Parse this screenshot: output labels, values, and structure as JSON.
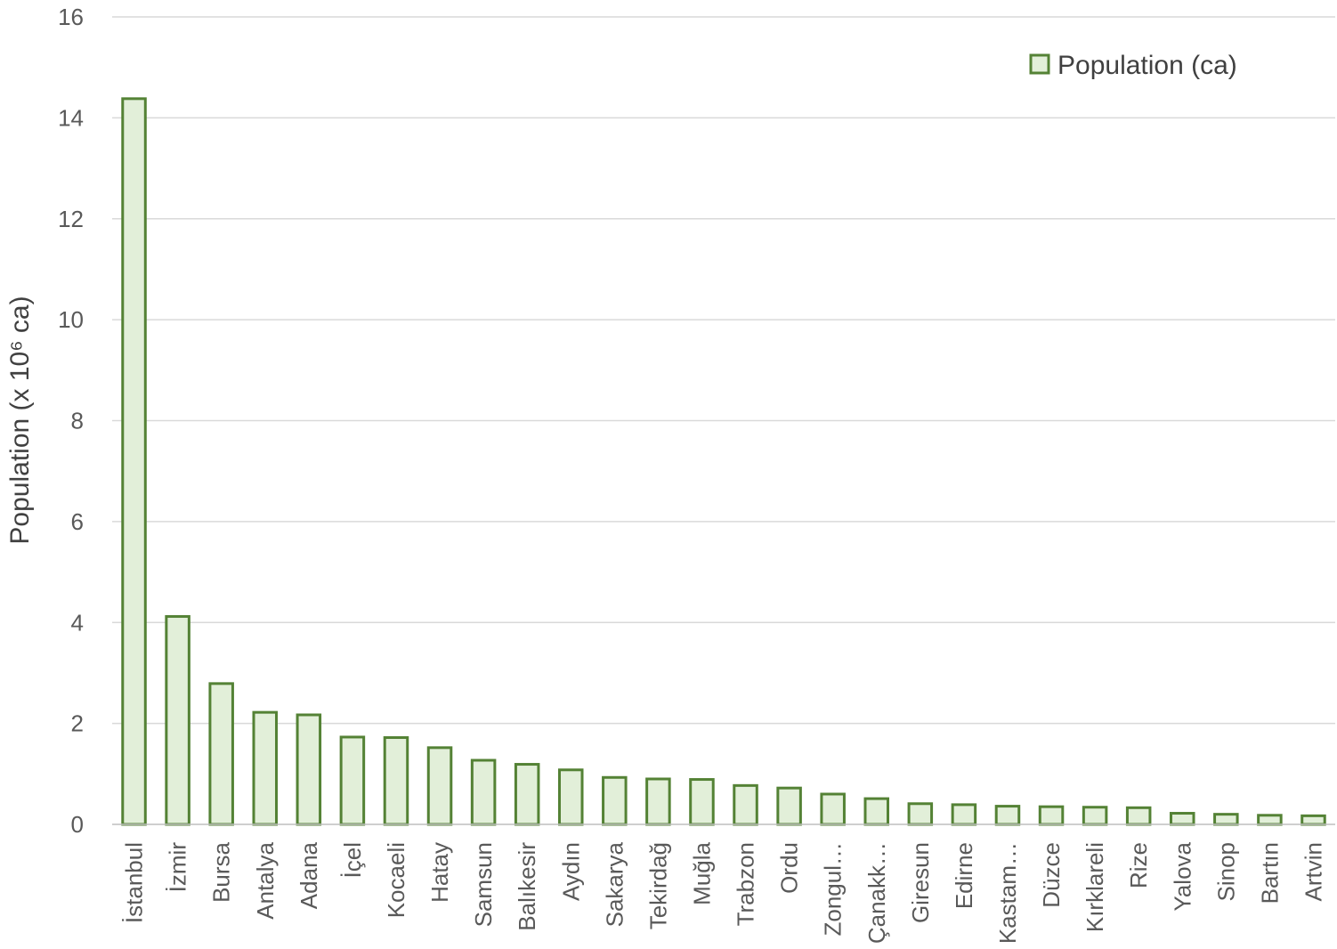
{
  "chart_data": {
    "type": "bar",
    "title": "",
    "xlabel": "",
    "ylabel": "Population (x 10⁶ ca)",
    "ylim": [
      0,
      16
    ],
    "yticks": [
      0,
      2,
      4,
      6,
      8,
      10,
      12,
      14,
      16
    ],
    "grid": true,
    "legend_position": "top-right",
    "colors": {
      "bar_fill": "#e2efd9",
      "bar_stroke": "#548235",
      "grid": "#d9d9d9",
      "axis": "#bfbfbf"
    },
    "categories": [
      "İstanbul",
      "İzmir",
      "Bursa",
      "Antalya",
      "Adana",
      "İçel",
      "Kocaeli",
      "Hatay",
      "Samsun",
      "Balıkesir",
      "Aydın",
      "Sakarya",
      "Tekirdağ",
      "Muğla",
      "Trabzon",
      "Ordu",
      "Zongul…",
      "Çanakk…",
      "Giresun",
      "Edirne",
      "Kastam…",
      "Düzce",
      "Kırklareli",
      "Rize",
      "Yalova",
      "Sinop",
      "Bartın",
      "Artvin"
    ],
    "series": [
      {
        "name": "Population (ca)",
        "values": [
          14.38,
          4.12,
          2.79,
          2.22,
          2.17,
          1.73,
          1.72,
          1.52,
          1.27,
          1.19,
          1.08,
          0.93,
          0.9,
          0.89,
          0.77,
          0.72,
          0.6,
          0.51,
          0.41,
          0.39,
          0.36,
          0.35,
          0.34,
          0.33,
          0.22,
          0.2,
          0.18,
          0.17
        ]
      }
    ]
  }
}
